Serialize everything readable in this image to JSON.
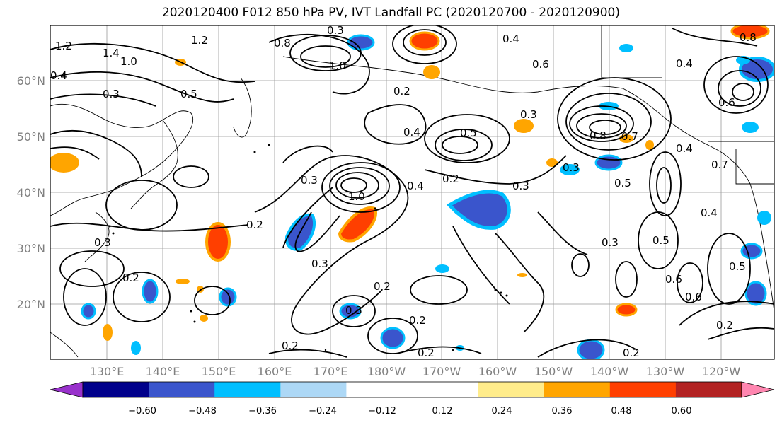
{
  "title": "2020120400 F012 850 hPa PV, IVT Landfall PC (2020120700 - 2020120900)",
  "lat_labels": [
    "60°N",
    "50°N",
    "40°N",
    "30°N",
    "20°N"
  ],
  "lon_labels": [
    "130°E",
    "140°E",
    "150°E",
    "160°E",
    "170°E",
    "180°W",
    "170°W",
    "160°W",
    "150°W",
    "140°W",
    "130°W",
    "120°W"
  ],
  "colorbar": {
    "colors": [
      "#9932cc",
      "#00008b",
      "#3a55cc",
      "#00bfff",
      "#add8f6",
      "#ffffff",
      "#ffffff",
      "#ffec8b",
      "#ffa500",
      "#ff3f00",
      "#b22222",
      "#ff86b0"
    ],
    "tick_labels": [
      "−0.60",
      "−0.48",
      "−0.36",
      "−0.24",
      "−0.12",
      "0.12",
      "0.24",
      "0.36",
      "0.48",
      "0.60"
    ]
  },
  "contour_labels": [
    "1.2",
    "1.2",
    "1.4",
    "1.0",
    "0.4",
    "0.3",
    "0.5",
    "0.8",
    "0.3",
    "1.0",
    "0.2",
    "0.4",
    "0.6",
    "0.4",
    "0.3",
    "0.4",
    "0.8",
    "0.7",
    "0.5",
    "0.3",
    "0.3",
    "1.0",
    "0.2",
    "0.2",
    "0.3",
    "0.3",
    "0.2",
    "0.2",
    "0.2",
    "0.2",
    "0.3",
    "0.5",
    "0.5",
    "0.6",
    "0.2",
    "0.2",
    "0.3",
    "0.2",
    "0.3",
    "0.4",
    "0.6",
    "0.4",
    "0.7",
    "0.6",
    "0.5",
    "0.4",
    "0.8"
  ]
}
